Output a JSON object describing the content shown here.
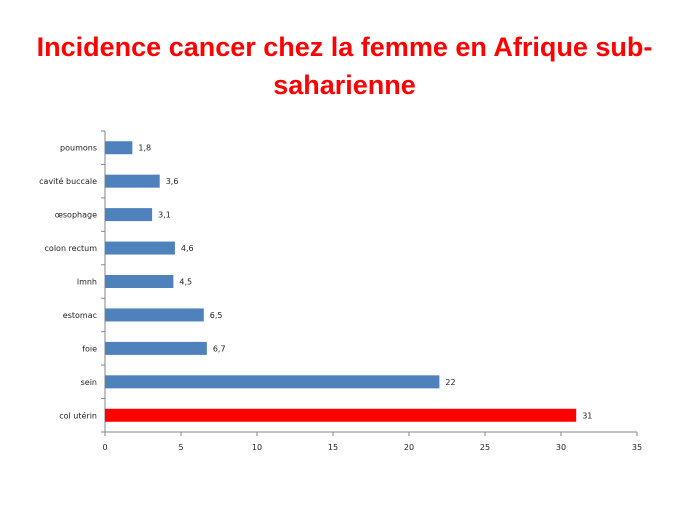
{
  "chart_data": {
    "type": "bar",
    "orientation": "horizontal",
    "title": "Incidence cancer chez la femme en Afrique sub-saharienne",
    "categories": [
      "poumons",
      "cavité buccale",
      "œsophage",
      "colon rectum",
      "lmnh",
      "estomac",
      "foie",
      "sein",
      "col utérin"
    ],
    "values": [
      1.8,
      3.6,
      3.1,
      4.6,
      4.5,
      6.5,
      6.7,
      22,
      31
    ],
    "value_labels": [
      "1,8",
      "3,6",
      "3,1",
      "4,6",
      "4,5",
      "6,5",
      "6,7",
      "22",
      "31"
    ],
    "colors": [
      "#4f81bd",
      "#4f81bd",
      "#4f81bd",
      "#4f81bd",
      "#4f81bd",
      "#4f81bd",
      "#4f81bd",
      "#4f81bd",
      "#ff0000"
    ],
    "xlim": [
      0,
      35
    ],
    "x_ticks": [
      0,
      5,
      10,
      15,
      20,
      25,
      30,
      35
    ],
    "grid": false,
    "xlabel": "",
    "ylabel": ""
  },
  "colors": {
    "title": "#ff0000",
    "bar_default": "#4f81bd",
    "bar_highlight": "#ff0000",
    "axis": "#868686"
  }
}
